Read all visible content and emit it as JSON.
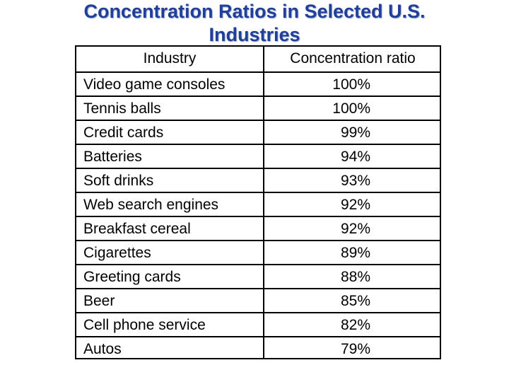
{
  "title": {
    "line1": "Concentration Ratios in Selected U.S.",
    "line2": "Industries"
  },
  "table": {
    "headers": [
      "Industry",
      "Concentration ratio"
    ],
    "rows": [
      {
        "industry": "Video game consoles",
        "ratio": "100%"
      },
      {
        "industry": "Tennis balls",
        "ratio": "100%"
      },
      {
        "industry": "Credit cards",
        "ratio": "99%"
      },
      {
        "industry": "Batteries",
        "ratio": "94%"
      },
      {
        "industry": "Soft drinks",
        "ratio": "93%"
      },
      {
        "industry": "Web search engines",
        "ratio": "92%"
      },
      {
        "industry": "Breakfast cereal",
        "ratio": "92%"
      },
      {
        "industry": "Cigarettes",
        "ratio": "89%"
      },
      {
        "industry": "Greeting cards",
        "ratio": "88%"
      },
      {
        "industry": "Beer",
        "ratio": "85%"
      },
      {
        "industry": "Cell phone service",
        "ratio": "82%"
      },
      {
        "industry": "Autos",
        "ratio": "79%"
      }
    ]
  }
}
